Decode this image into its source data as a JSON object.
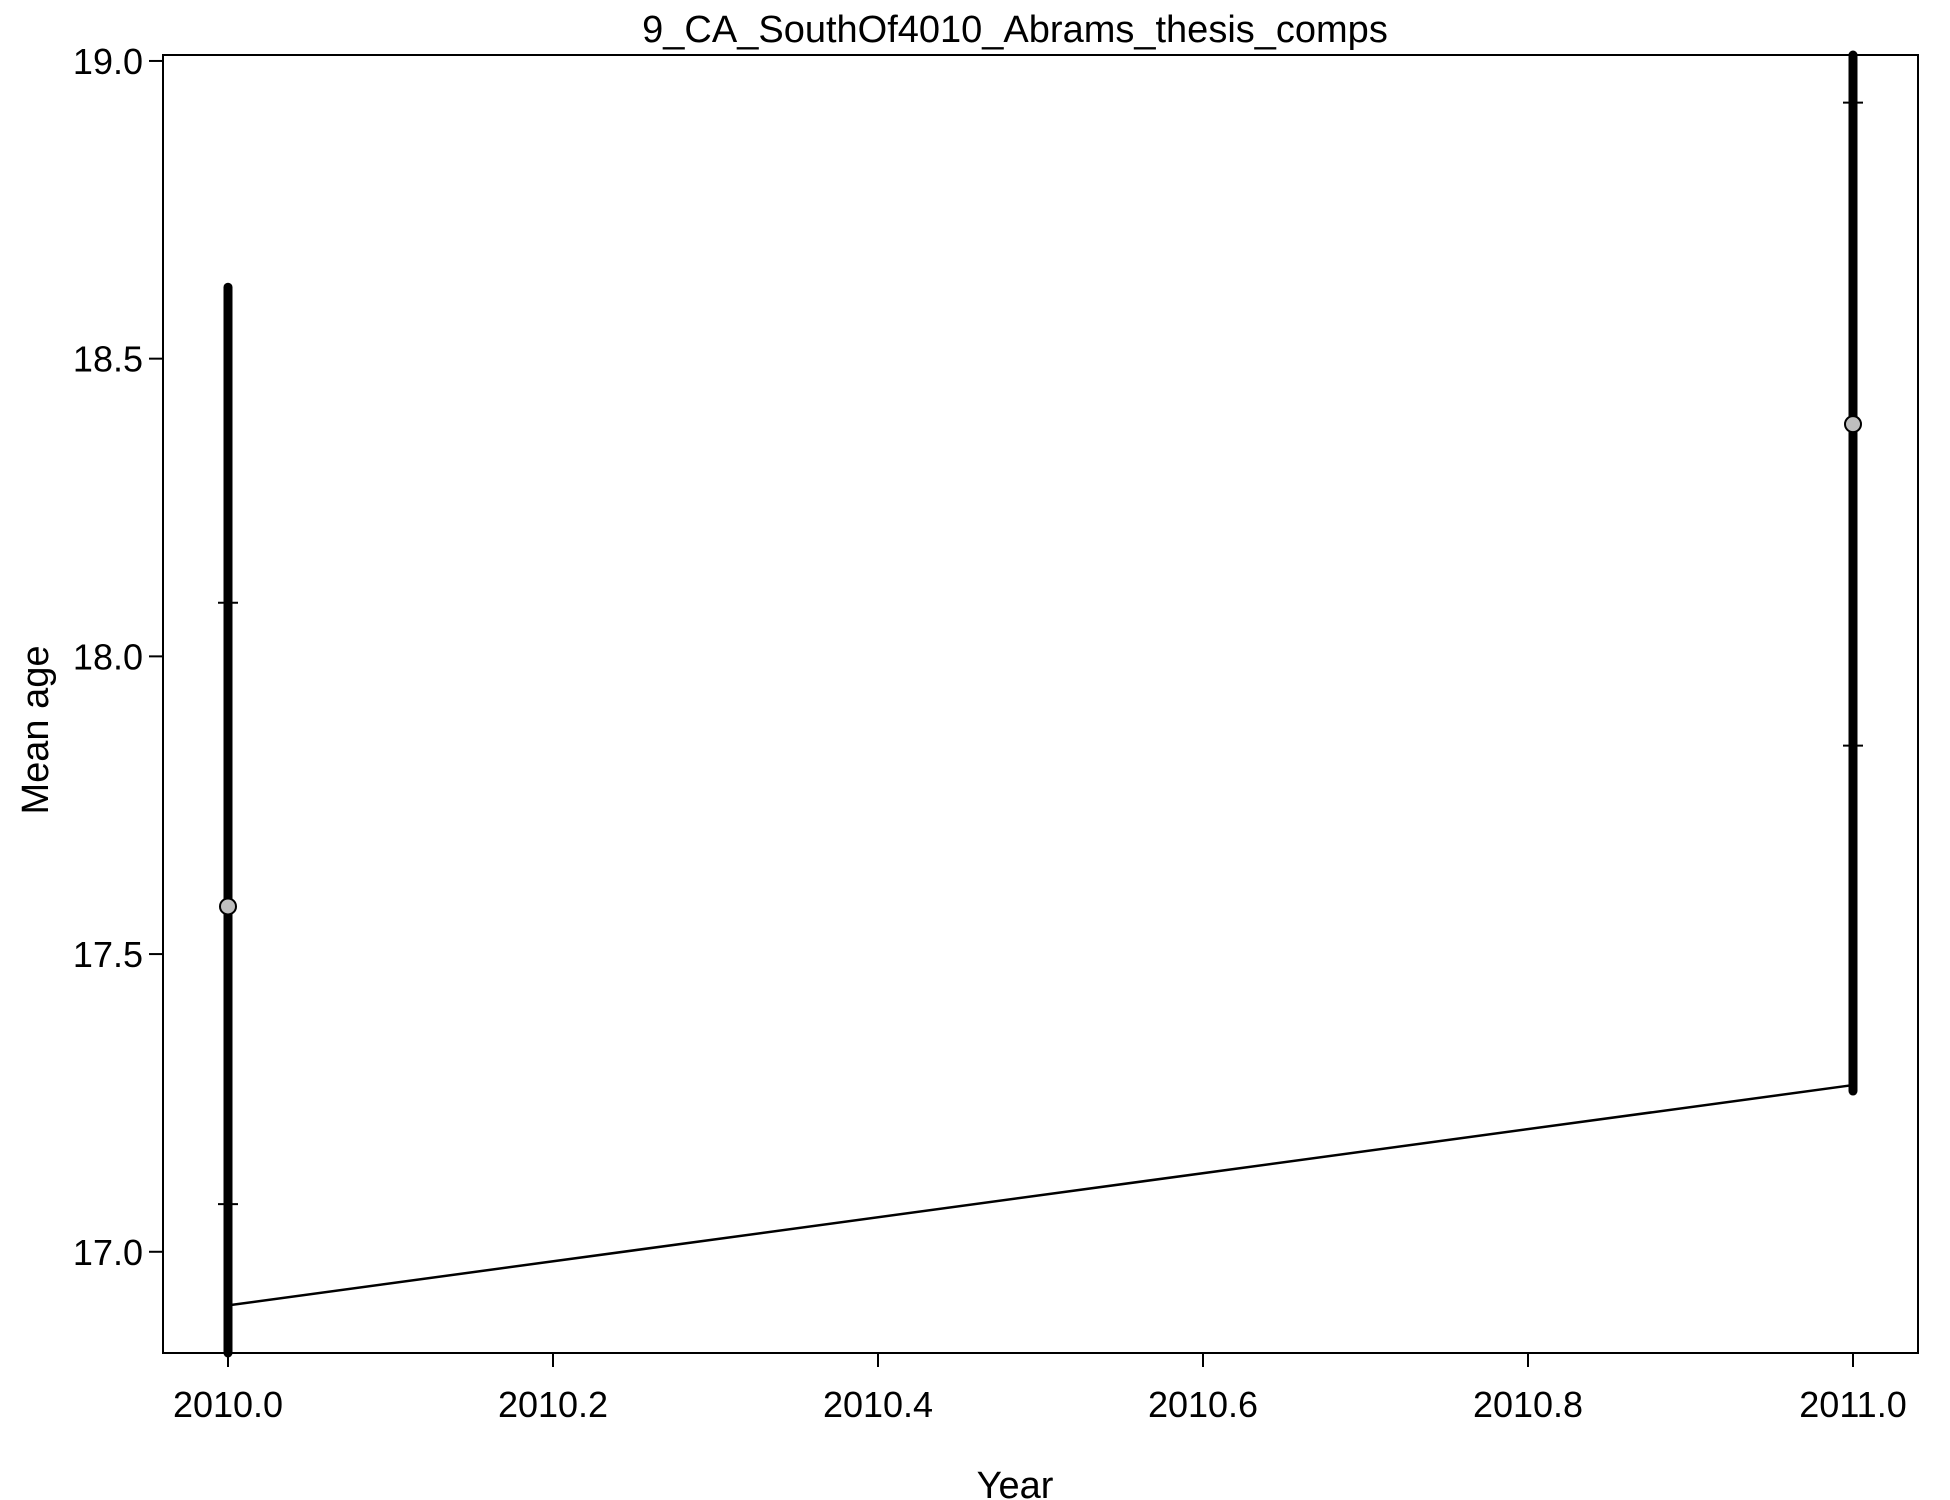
{
  "chart_data": {
    "type": "scatter",
    "title": "9_CA_SouthOf4010_Abrams_thesis_comps",
    "xlabel": "Year",
    "ylabel": "Mean age",
    "xlim": [
      2009.96,
      2011.04
    ],
    "ylim": [
      16.83,
      19.01
    ],
    "xticks": [
      2010.0,
      2010.2,
      2010.4,
      2010.6,
      2010.8,
      2011.0
    ],
    "xtick_labels": [
      "2010.0",
      "2010.2",
      "2010.4",
      "2010.6",
      "2010.8",
      "2011.0"
    ],
    "yticks": [
      17.0,
      17.5,
      18.0,
      18.5,
      19.0
    ],
    "ytick_labels": [
      "17.0",
      "17.5",
      "18.0",
      "18.5",
      "19.0"
    ],
    "grid": false,
    "series": [
      {
        "x": [
          2010.0,
          2011.0
        ],
        "y": [
          17.58,
          18.39
        ],
        "interval_outer_low": [
          16.83,
          17.27
        ],
        "interval_outer_high": [
          18.62,
          19.01
        ],
        "interval_inner_low": [
          17.08,
          17.85
        ],
        "interval_inner_high": [
          18.09,
          18.93
        ]
      },
      {
        "x": [
          2010.0,
          2011.0
        ],
        "y": [
          16.91,
          17.28
        ]
      }
    ],
    "colors": {
      "point_fill": "#bebebe",
      "point_stroke": "#000000",
      "bar": "#000000",
      "line": "#000000"
    }
  }
}
